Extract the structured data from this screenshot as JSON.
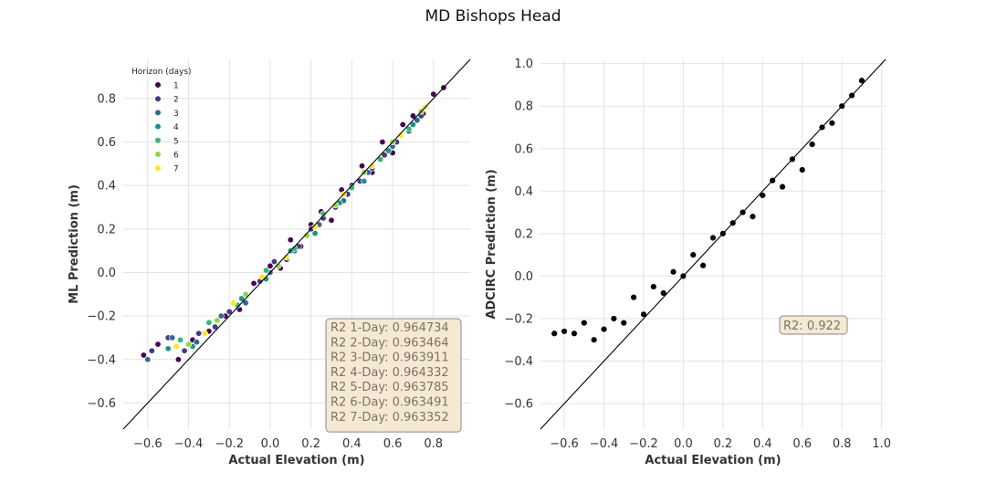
{
  "figure": {
    "title": "MD Bishops Head"
  },
  "chart_data": [
    {
      "type": "scatter",
      "xlabel": "Actual Elevation (m)",
      "ylabel": "ML Prediction (m)",
      "xlim": [
        -0.72,
        0.98
      ],
      "ylim": [
        -0.72,
        0.98
      ],
      "xticks": [
        "−0.6",
        "−0.4",
        "−0.2",
        "0.0",
        "0.2",
        "0.4",
        "0.6",
        "0.8"
      ],
      "yticks": [
        "−0.6",
        "−0.4",
        "−0.2",
        "0.0",
        "0.2",
        "0.4",
        "0.6",
        "0.8"
      ],
      "xtick_values": [
        -0.6,
        -0.4,
        -0.2,
        0.0,
        0.2,
        0.4,
        0.6,
        0.8
      ],
      "ytick_values": [
        -0.6,
        -0.4,
        -0.2,
        0.0,
        0.2,
        0.4,
        0.6,
        0.8
      ],
      "grid": true,
      "reference_line": "y = x",
      "legend": {
        "title": "Horizon (days)",
        "placement": "top-left",
        "entries": [
          {
            "label": "1",
            "color": "#440154"
          },
          {
            "label": "2",
            "color": "#443983"
          },
          {
            "label": "3",
            "color": "#31688e"
          },
          {
            "label": "4",
            "color": "#21918c"
          },
          {
            "label": "5",
            "color": "#35b779"
          },
          {
            "label": "6",
            "color": "#90d743"
          },
          {
            "label": "7",
            "color": "#fde725"
          }
        ]
      },
      "annotation": [
        "R2 1-Day: 0.964734",
        "R2 2-Day: 0.963464",
        "R2 3-Day: 0.963911",
        "R2 4-Day: 0.964332",
        "R2 5-Day: 0.963785",
        "R2 6-Day: 0.963491",
        "R2 7-Day: 0.963352"
      ],
      "series": [
        {
          "name": "1",
          "color": "#440154",
          "x": [
            -0.62,
            -0.55,
            -0.45,
            -0.38,
            -0.3,
            -0.22,
            -0.15,
            -0.08,
            0.0,
            0.05,
            0.1,
            0.15,
            0.2,
            0.25,
            0.3,
            0.35,
            0.4,
            0.45,
            0.5,
            0.55,
            0.6,
            0.65,
            0.7,
            0.75,
            0.8,
            0.85
          ],
          "y": [
            -0.38,
            -0.33,
            -0.4,
            -0.31,
            -0.27,
            -0.2,
            -0.17,
            -0.05,
            0.03,
            0.02,
            0.15,
            0.12,
            0.22,
            0.28,
            0.24,
            0.38,
            0.4,
            0.49,
            0.46,
            0.6,
            0.55,
            0.68,
            0.72,
            0.73,
            0.82,
            0.85
          ]
        },
        {
          "name": "2",
          "color": "#443983",
          "x": [
            -0.58,
            -0.5,
            -0.42,
            -0.35,
            -0.27,
            -0.2,
            -0.12,
            -0.05,
            0.02,
            0.08,
            0.14,
            0.2,
            0.26,
            0.32,
            0.38,
            0.44,
            0.5,
            0.56,
            0.62,
            0.68,
            0.74
          ],
          "y": [
            -0.36,
            -0.3,
            -0.36,
            -0.28,
            -0.25,
            -0.18,
            -0.1,
            -0.04,
            0.05,
            0.06,
            0.12,
            0.2,
            0.25,
            0.3,
            0.36,
            0.42,
            0.48,
            0.54,
            0.6,
            0.65,
            0.72
          ]
        },
        {
          "name": "3",
          "color": "#31688e",
          "x": [
            -0.6,
            -0.48,
            -0.36,
            -0.24,
            -0.12,
            0.0,
            0.12,
            0.24,
            0.36,
            0.48,
            0.6,
            0.72
          ],
          "y": [
            -0.4,
            -0.3,
            -0.32,
            -0.2,
            -0.14,
            0.0,
            0.1,
            0.22,
            0.33,
            0.46,
            0.58,
            0.7
          ]
        },
        {
          "name": "4",
          "color": "#21918c",
          "x": [
            -0.5,
            -0.38,
            -0.26,
            -0.14,
            -0.02,
            0.1,
            0.22,
            0.34,
            0.46,
            0.58,
            0.7
          ],
          "y": [
            -0.35,
            -0.34,
            -0.22,
            -0.12,
            -0.03,
            0.1,
            0.18,
            0.32,
            0.42,
            0.56,
            0.68
          ]
        },
        {
          "name": "5",
          "color": "#35b779",
          "x": [
            -0.44,
            -0.3,
            -0.16,
            -0.02,
            0.12,
            0.26,
            0.4,
            0.54,
            0.68
          ],
          "y": [
            -0.31,
            -0.23,
            -0.15,
            0.01,
            0.11,
            0.27,
            0.39,
            0.52,
            0.66
          ]
        },
        {
          "name": "6",
          "color": "#90d743",
          "x": [
            -0.4,
            -0.26,
            -0.12,
            0.04,
            0.18,
            0.32,
            0.46,
            0.6,
            0.74
          ],
          "y": [
            -0.33,
            -0.22,
            -0.1,
            0.03,
            0.17,
            0.31,
            0.46,
            0.6,
            0.74
          ]
        },
        {
          "name": "7",
          "color": "#fde725",
          "x": [
            -0.46,
            -0.32,
            -0.18,
            -0.04,
            0.08,
            0.22,
            0.36,
            0.5,
            0.64,
            0.76
          ],
          "y": [
            -0.34,
            -0.28,
            -0.14,
            -0.02,
            0.07,
            0.21,
            0.36,
            0.49,
            0.63,
            0.76
          ]
        }
      ]
    },
    {
      "type": "scatter",
      "xlabel": "Actual Elevation (m)",
      "ylabel": "ADCIRC Prediction (m)",
      "xlim": [
        -0.72,
        1.02
      ],
      "ylim": [
        -0.72,
        1.02
      ],
      "xticks": [
        "−0.6",
        "−0.4",
        "−0.2",
        "0.0",
        "0.2",
        "0.4",
        "0.6",
        "0.8",
        "1.0"
      ],
      "yticks": [
        "−0.6",
        "−0.4",
        "−0.2",
        "0.0",
        "0.2",
        "0.4",
        "0.6",
        "0.8",
        "1.0"
      ],
      "xtick_values": [
        -0.6,
        -0.4,
        -0.2,
        0.0,
        0.2,
        0.4,
        0.6,
        0.8,
        1.0
      ],
      "ytick_values": [
        -0.6,
        -0.4,
        -0.2,
        0.0,
        0.2,
        0.4,
        0.6,
        0.8,
        1.0
      ],
      "grid": true,
      "reference_line": "y = x",
      "annotation": [
        "R2: 0.922"
      ],
      "series": [
        {
          "color": "#000000",
          "x": [
            -0.65,
            -0.6,
            -0.55,
            -0.5,
            -0.45,
            -0.4,
            -0.35,
            -0.3,
            -0.25,
            -0.2,
            -0.15,
            -0.1,
            -0.05,
            0.0,
            0.05,
            0.1,
            0.15,
            0.2,
            0.25,
            0.3,
            0.35,
            0.4,
            0.45,
            0.5,
            0.55,
            0.6,
            0.65,
            0.7,
            0.75,
            0.8,
            0.85,
            0.9
          ],
          "y": [
            -0.27,
            -0.26,
            -0.27,
            -0.22,
            -0.3,
            -0.25,
            -0.2,
            -0.22,
            -0.1,
            -0.18,
            -0.05,
            -0.08,
            0.02,
            0.0,
            0.1,
            0.05,
            0.18,
            0.2,
            0.25,
            0.3,
            0.28,
            0.38,
            0.45,
            0.42,
            0.55,
            0.5,
            0.62,
            0.7,
            0.72,
            0.8,
            0.85,
            0.92
          ]
        }
      ]
    }
  ]
}
